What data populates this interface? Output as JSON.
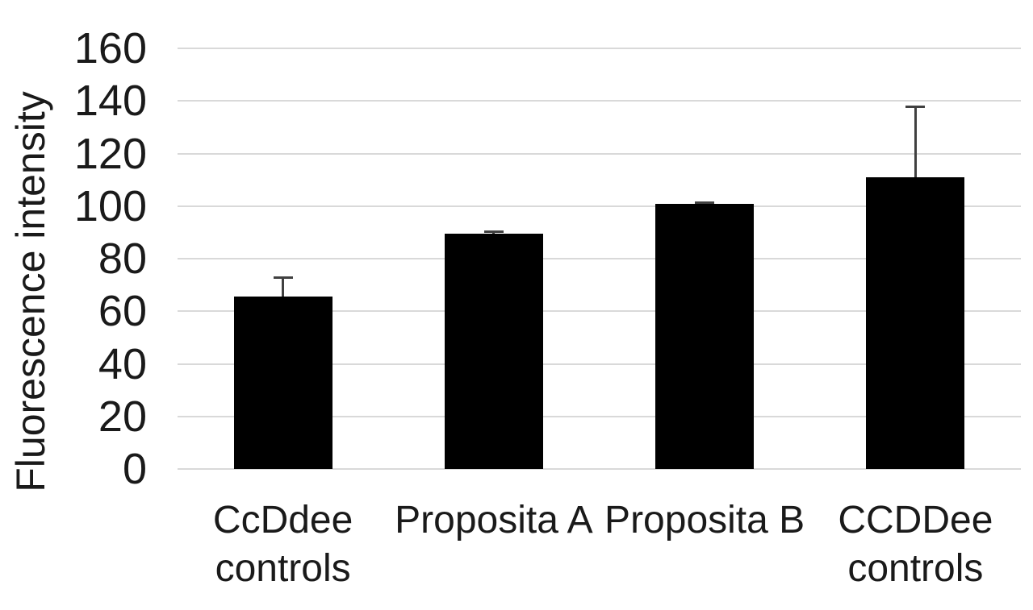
{
  "chart_data": {
    "type": "bar",
    "title": "",
    "xlabel": "",
    "ylabel": "Fluorescence intensity",
    "categories": [
      "CcDdee controls",
      "Proposita A",
      "Proposita B",
      "CCDDee controls"
    ],
    "category_lines": [
      [
        "CcDdee",
        "controls"
      ],
      [
        "Proposita A"
      ],
      [
        "Proposita B"
      ],
      [
        "CCDDee",
        "controls"
      ]
    ],
    "values": [
      65.5,
      89.5,
      100.8,
      111
    ],
    "errors_plus": [
      7.5,
      0.8,
      0.8,
      27
    ],
    "y_ticks": [
      0,
      20,
      40,
      60,
      80,
      100,
      120,
      140,
      160
    ],
    "ylim": [
      0,
      160
    ],
    "grid": true,
    "legend_position": "none",
    "colors": {
      "bar": "#000000",
      "error_bar": "#404040",
      "gridline": "#d9d9d9",
      "text": "#1a1a1a",
      "background": "#ffffff"
    }
  }
}
